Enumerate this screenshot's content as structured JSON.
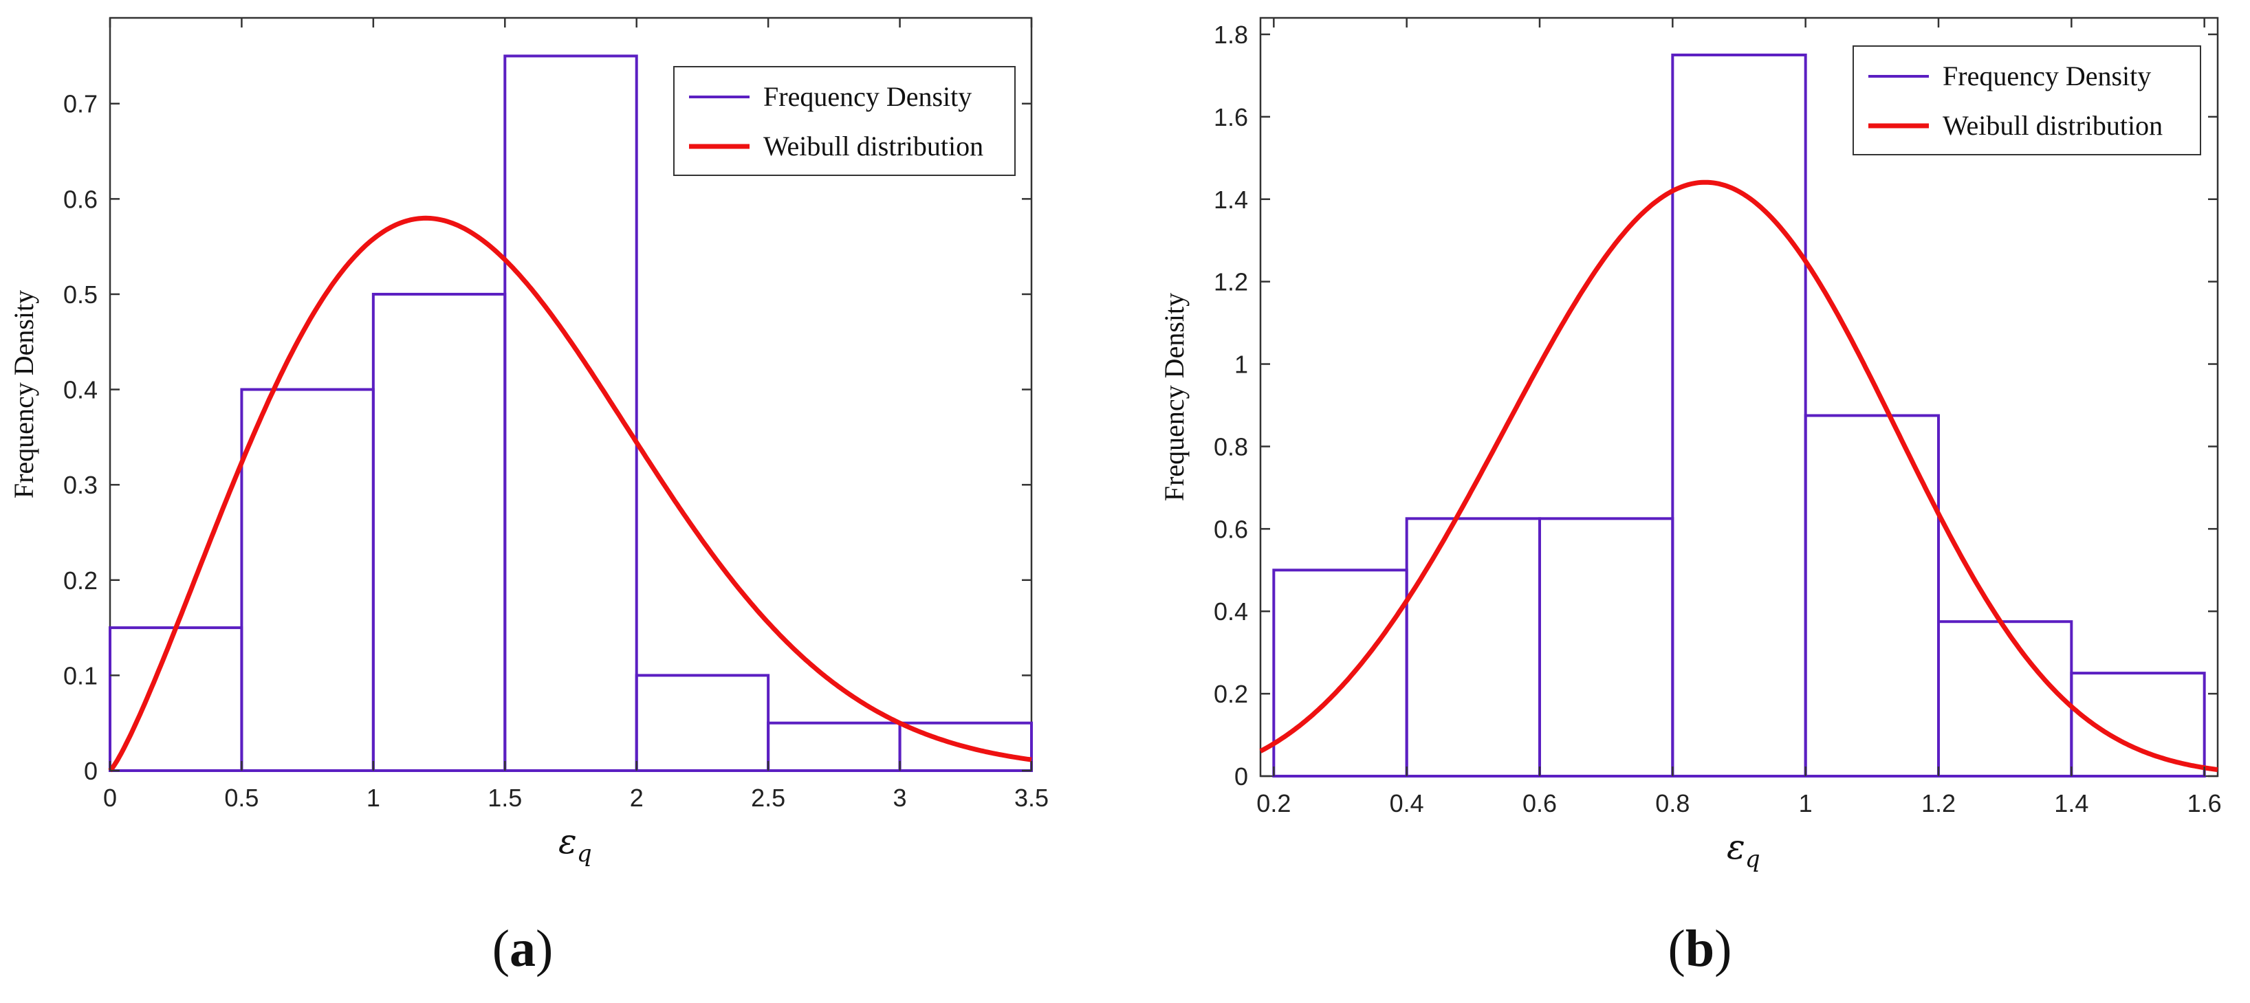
{
  "colors": {
    "histogram": "#5B1FC2",
    "fit": "#EE1111",
    "axis": "#333333",
    "background": "#ffffff"
  },
  "chart_data": [
    {
      "type": "bar",
      "panel_label": "a",
      "title": "",
      "xlabel_symbol": "ε",
      "xlabel_subscript": "q",
      "ylabel": "Frequency Density",
      "xlim": [
        0,
        3.5
      ],
      "ylim": [
        0,
        0.79
      ],
      "xticks": [
        0,
        0.5,
        1,
        1.5,
        2,
        2.5,
        3,
        3.5
      ],
      "xtick_labels": [
        "0",
        "0.5",
        "1",
        "1.5",
        "2",
        "2.5",
        "3",
        "3.5"
      ],
      "yticks": [
        0,
        0.1,
        0.2,
        0.3,
        0.4,
        0.5,
        0.6,
        0.7
      ],
      "ytick_labels": [
        "0",
        "0.1",
        "0.2",
        "0.3",
        "0.4",
        "0.5",
        "0.6",
        "0.7"
      ],
      "bin_edges": [
        0,
        0.5,
        1,
        1.5,
        2,
        2.5,
        3,
        3.5
      ],
      "series": [
        {
          "name": "Frequency Density",
          "kind": "histogram",
          "values": [
            0.15,
            0.4,
            0.5,
            0.75,
            0.1,
            0.05,
            0.05
          ]
        },
        {
          "name": "Weibull distribution",
          "kind": "curve",
          "shape": 2.2,
          "scale": 1.58
        }
      ],
      "legend_position": "top-right",
      "grid": false
    },
    {
      "type": "bar",
      "panel_label": "b",
      "title": "",
      "xlabel_symbol": "ε",
      "xlabel_subscript": "q",
      "ylabel": "Frequency Density",
      "xlim": [
        0.18,
        1.62
      ],
      "ylim": [
        0,
        1.84
      ],
      "xticks": [
        0.2,
        0.4,
        0.6,
        0.8,
        1.0,
        1.2,
        1.4,
        1.6
      ],
      "xtick_labels": [
        "0.2",
        "0.4",
        "0.6",
        "0.8",
        "1",
        "1.2",
        "1.4",
        "1.6"
      ],
      "yticks": [
        0,
        0.2,
        0.4,
        0.6,
        0.8,
        1.0,
        1.2,
        1.4,
        1.6,
        1.8
      ],
      "ytick_labels": [
        "0",
        "0.2",
        "0.4",
        "0.6",
        "0.8",
        "1",
        "1.2",
        "1.4",
        "1.6",
        "1.8"
      ],
      "bin_edges": [
        0.2,
        0.4,
        0.6,
        0.8,
        1.0,
        1.2,
        1.4,
        1.6
      ],
      "series": [
        {
          "name": "Frequency Density",
          "kind": "histogram",
          "values": [
            0.5,
            0.625,
            0.625,
            1.75,
            0.875,
            0.375,
            0.25
          ]
        },
        {
          "name": "Weibull distribution",
          "kind": "curve",
          "shape": 3.5,
          "scale": 0.935
        }
      ],
      "legend_position": "top-right",
      "grid": false
    }
  ]
}
